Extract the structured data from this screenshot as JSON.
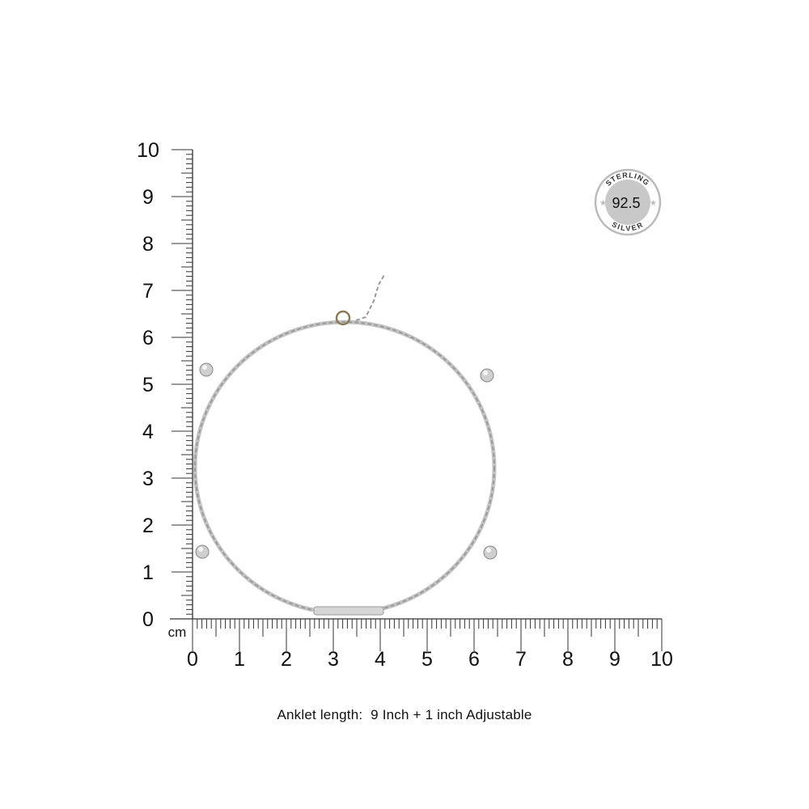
{
  "ruler": {
    "unit_label": "cm",
    "y_ticks": [
      "0",
      "1",
      "2",
      "3",
      "4",
      "5",
      "6",
      "7",
      "8",
      "9",
      "10"
    ],
    "x_ticks": [
      "0",
      "1",
      "2",
      "3",
      "4",
      "5",
      "6",
      "7",
      "8",
      "9",
      "10"
    ]
  },
  "badge": {
    "top_text": "STERLING",
    "value": "92.5",
    "bottom_text": "SILVER",
    "fill_color": "#c8c8c8"
  },
  "caption": "Anklet length:  9 Inch + 1 inch Adjustable",
  "colors": {
    "ruler": "#333333",
    "chain": "#9a9a9a"
  }
}
